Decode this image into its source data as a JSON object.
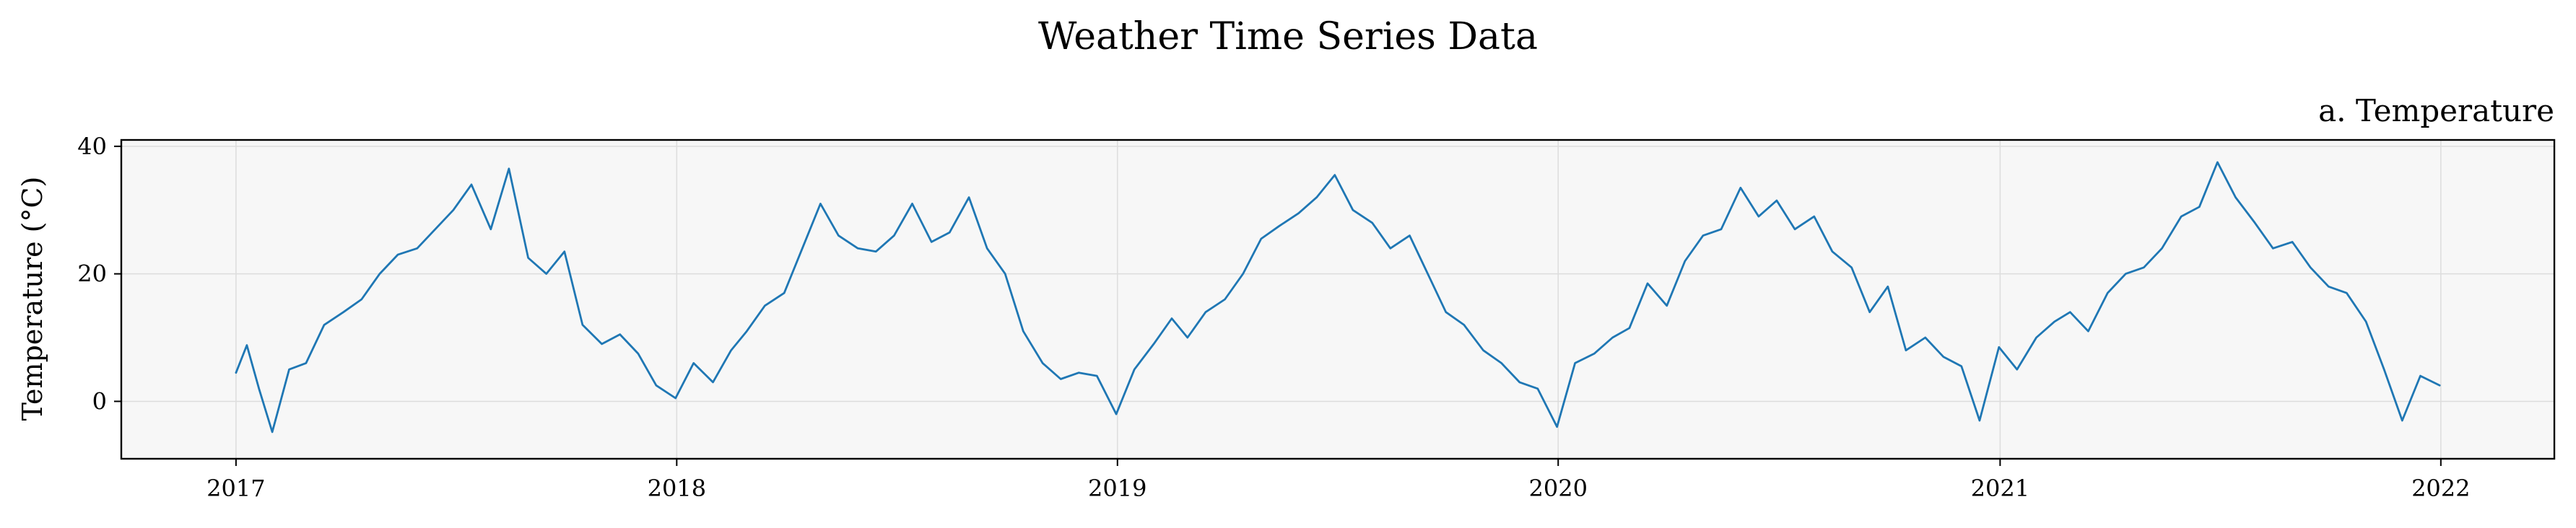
{
  "chart_data": {
    "type": "line",
    "title": "Weather Time Series Data",
    "subtitle": "a. Temperature",
    "xlabel": "",
    "ylabel": "Temperature (°C)",
    "x_type": "date",
    "xlim": [
      "2016-09-28",
      "2022-04-05"
    ],
    "ylim": [
      -9,
      41
    ],
    "x_ticks": [
      "2017",
      "2018",
      "2019",
      "2020",
      "2021",
      "2022"
    ],
    "y_ticks": [
      "0",
      "20",
      "40"
    ],
    "grid": true,
    "legend": "none",
    "colors": {
      "line": "#1f77b4",
      "plot_background": "#f7f7f7",
      "grid": "#dddddd",
      "frame": "#000000"
    },
    "series": [
      {
        "dates": [
          "2017-01-01",
          "2017-01-10",
          "2017-01-20",
          "2017-01-31",
          "2017-02-14",
          "2017-02-28",
          "2017-03-15",
          "2017-03-31",
          "2017-04-15",
          "2017-04-30",
          "2017-05-15",
          "2017-05-31",
          "2017-06-15",
          "2017-06-30",
          "2017-07-15",
          "2017-07-31",
          "2017-08-15",
          "2017-08-31",
          "2017-09-15",
          "2017-09-30",
          "2017-10-15",
          "2017-10-31",
          "2017-11-15",
          "2017-11-30",
          "2017-12-15",
          "2017-12-31",
          "2018-01-15",
          "2018-01-31",
          "2018-02-15",
          "2018-02-28",
          "2018-03-15",
          "2018-03-31",
          "2018-04-15",
          "2018-04-30",
          "2018-05-15",
          "2018-05-31",
          "2018-06-15",
          "2018-06-30",
          "2018-07-15",
          "2018-07-31",
          "2018-08-15",
          "2018-08-31",
          "2018-09-15",
          "2018-09-30",
          "2018-10-15",
          "2018-10-31",
          "2018-11-15",
          "2018-11-30",
          "2018-12-15",
          "2018-12-31",
          "2019-01-15",
          "2019-01-31",
          "2019-02-15",
          "2019-02-28",
          "2019-03-15",
          "2019-03-31",
          "2019-04-15",
          "2019-04-30",
          "2019-05-15",
          "2019-05-31",
          "2019-06-15",
          "2019-06-30",
          "2019-07-15",
          "2019-07-31",
          "2019-08-15",
          "2019-08-31",
          "2019-09-15",
          "2019-09-30",
          "2019-10-15",
          "2019-10-31",
          "2019-11-15",
          "2019-11-30",
          "2019-12-15",
          "2019-12-31",
          "2020-01-15",
          "2020-01-31",
          "2020-02-15",
          "2020-02-29",
          "2020-03-15",
          "2020-03-31",
          "2020-04-15",
          "2020-04-30",
          "2020-05-15",
          "2020-05-31",
          "2020-06-15",
          "2020-06-30",
          "2020-07-15",
          "2020-07-31",
          "2020-08-15",
          "2020-08-31",
          "2020-09-15",
          "2020-09-30",
          "2020-10-15",
          "2020-10-31",
          "2020-11-15",
          "2020-11-30",
          "2020-12-15",
          "2020-12-31",
          "2021-01-15",
          "2021-01-31",
          "2021-02-15",
          "2021-02-28",
          "2021-03-15",
          "2021-03-31",
          "2021-04-15",
          "2021-04-30",
          "2021-05-15",
          "2021-05-31",
          "2021-06-15",
          "2021-06-30",
          "2021-07-15",
          "2021-07-31",
          "2021-08-15",
          "2021-08-31",
          "2021-09-15",
          "2021-09-30",
          "2021-10-15",
          "2021-10-31",
          "2021-11-15",
          "2021-11-30",
          "2021-12-15",
          "2021-12-31"
        ],
        "values": [
          4.5,
          8.8,
          2.0,
          -4.8,
          5.0,
          6.0,
          12.0,
          14.0,
          16.0,
          20.0,
          23.0,
          24.0,
          27.0,
          30.0,
          34.0,
          27.0,
          36.5,
          22.5,
          20.0,
          23.5,
          12.0,
          9.0,
          10.5,
          7.5,
          2.5,
          0.5,
          6.0,
          3.0,
          8.0,
          11.0,
          15.0,
          17.0,
          24.0,
          31.0,
          26.0,
          24.0,
          23.5,
          26.0,
          31.0,
          25.0,
          26.5,
          32.0,
          24.0,
          20.0,
          11.0,
          6.0,
          3.5,
          4.5,
          4.0,
          -2.0,
          5.0,
          9.0,
          13.0,
          10.0,
          14.0,
          16.0,
          20.0,
          25.5,
          27.5,
          29.5,
          32.0,
          35.5,
          30.0,
          28.0,
          24.0,
          26.0,
          20.0,
          14.0,
          12.0,
          8.0,
          6.0,
          3.0,
          2.0,
          -4.0,
          6.0,
          7.5,
          10.0,
          11.5,
          18.5,
          15.0,
          22.0,
          26.0,
          27.0,
          33.5,
          29.0,
          31.5,
          27.0,
          29.0,
          23.5,
          21.0,
          14.0,
          18.0,
          8.0,
          10.0,
          7.0,
          5.5,
          -3.0,
          8.5,
          5.0,
          10.0,
          12.5,
          14.0,
          11.0,
          17.0,
          20.0,
          21.0,
          24.0,
          29.0,
          30.5,
          37.5,
          32.0,
          28.0,
          24.0,
          25.0,
          21.0,
          18.0,
          17.0,
          12.5,
          5.0,
          -3.0,
          4.0,
          2.5
        ]
      }
    ]
  }
}
